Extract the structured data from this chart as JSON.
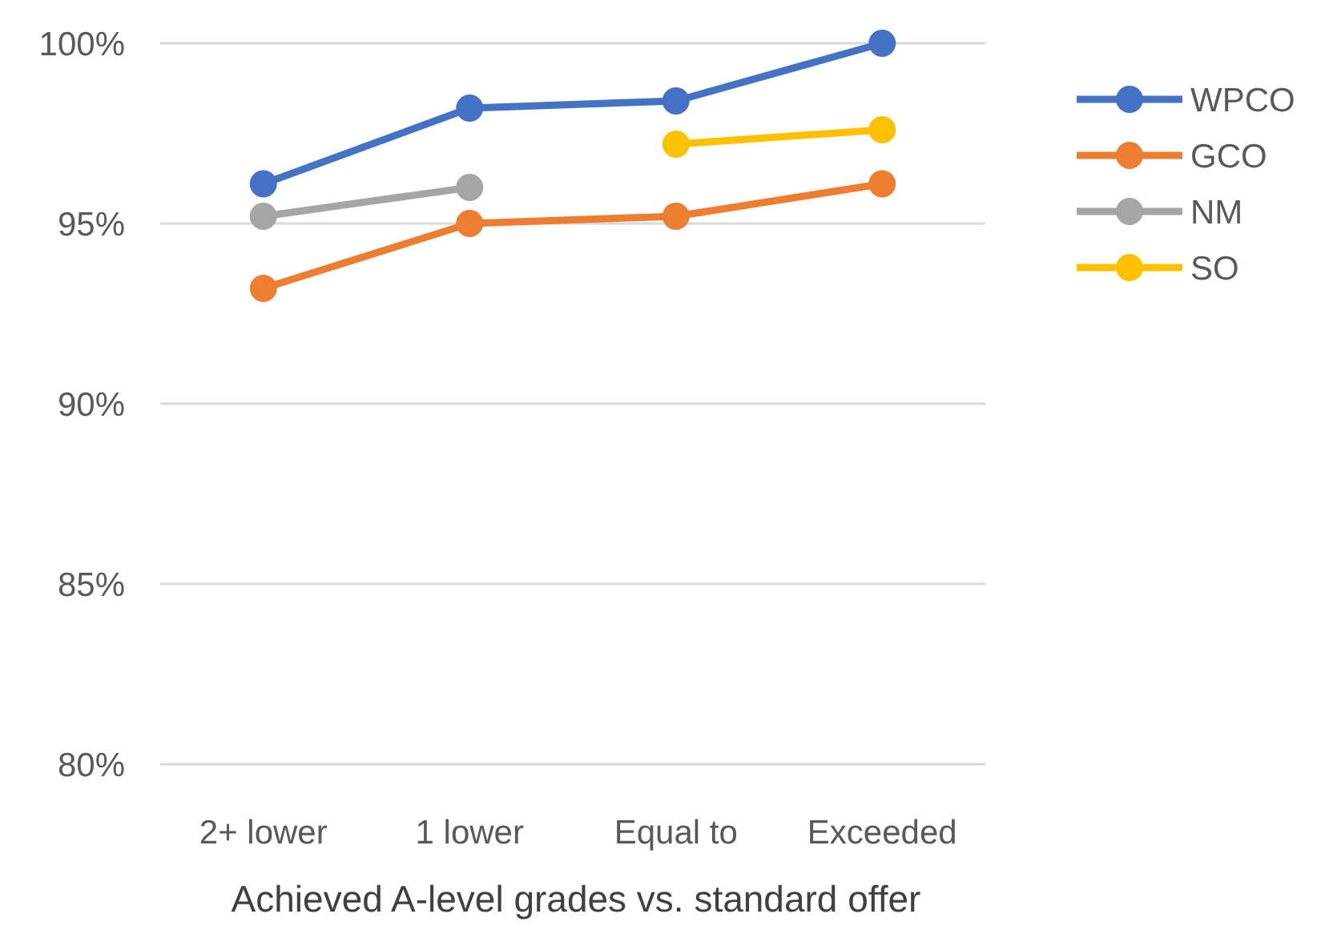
{
  "chart_data": {
    "type": "line",
    "xlabel": "Achieved A-level grades vs. standard offer",
    "categories": [
      "2+ lower",
      "1 lower",
      "Equal to",
      "Exceeded"
    ],
    "series": [
      {
        "name": "WPCO",
        "color": "#4472c4",
        "values": [
          96.1,
          98.2,
          98.4,
          100
        ]
      },
      {
        "name": "GCO",
        "color": "#ed7d31",
        "values": [
          93.2,
          95.0,
          95.2,
          96.1
        ]
      },
      {
        "name": "NM",
        "color": "#a5a5a5",
        "values": [
          95.2,
          96.0,
          null,
          null
        ]
      },
      {
        "name": "SO",
        "color": "#ffc000",
        "values": [
          null,
          null,
          97.2,
          97.6
        ]
      }
    ],
    "ylim": [
      80,
      100
    ],
    "yticks": [
      {
        "value": 80,
        "label": "80%"
      },
      {
        "value": 85,
        "label": "85%"
      },
      {
        "value": 90,
        "label": "90%"
      },
      {
        "value": 95,
        "label": "95%"
      },
      {
        "value": 100,
        "label": "100%"
      }
    ],
    "grid": "y",
    "legend": "right",
    "marker": "circle",
    "line_style": "solid"
  }
}
